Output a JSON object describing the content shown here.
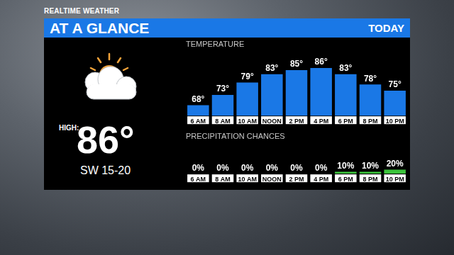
{
  "header": {
    "brand": "REALTIME WEATHER",
    "title": "AT A GLANCE",
    "period": "TODAY"
  },
  "summary": {
    "high_label": "HIGH:",
    "high": "86°",
    "wind": "SW 15-20"
  },
  "chart_data": [
    {
      "type": "bar",
      "title": "TEMPERATURE",
      "categories": [
        "6 AM",
        "8 AM",
        "10 AM",
        "NOON",
        "2 PM",
        "4 PM",
        "6 PM",
        "8 PM",
        "10 PM"
      ],
      "values": [
        68,
        73,
        79,
        83,
        85,
        86,
        83,
        78,
        75
      ],
      "value_labels": [
        "68°",
        "73°",
        "79°",
        "83°",
        "85°",
        "86°",
        "83°",
        "78°",
        "75°"
      ],
      "color": "#1a78e6",
      "ylim": [
        63,
        89
      ],
      "grid": false,
      "data_labels": true,
      "tick_labels": "x"
    },
    {
      "type": "bar",
      "title": "PRECIPITATION CHANCES",
      "categories": [
        "6 AM",
        "8 AM",
        "10 AM",
        "NOON",
        "2 PM",
        "4 PM",
        "6 PM",
        "8 PM",
        "10 PM"
      ],
      "values": [
        0,
        0,
        0,
        0,
        0,
        0,
        10,
        10,
        20
      ],
      "value_labels": [
        "0%",
        "0%",
        "0%",
        "0%",
        "0%",
        "0%",
        "10%",
        "10%",
        "20%"
      ],
      "color": "#3cc43c",
      "ylim": [
        0,
        100
      ],
      "grid": false,
      "data_labels": true,
      "tick_labels": "x"
    }
  ]
}
